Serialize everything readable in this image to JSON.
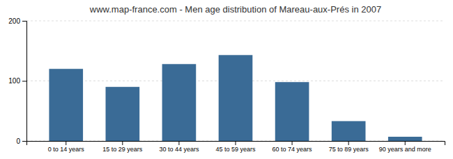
{
  "chart_data": {
    "type": "bar",
    "title": "www.map-france.com - Men age distribution of Mareau-aux-Prés in 2007",
    "categories": [
      "0 to 14 years",
      "15 to 29 years",
      "30 to 44 years",
      "45 to 59 years",
      "60 to 74 years",
      "75 to 89 years",
      "90 years and more"
    ],
    "values": [
      120,
      90,
      128,
      143,
      98,
      33,
      7
    ],
    "color": "#3a6b96",
    "ylim": [
      0,
      200
    ],
    "yticks": [
      0,
      100,
      200
    ],
    "grid": true
  }
}
